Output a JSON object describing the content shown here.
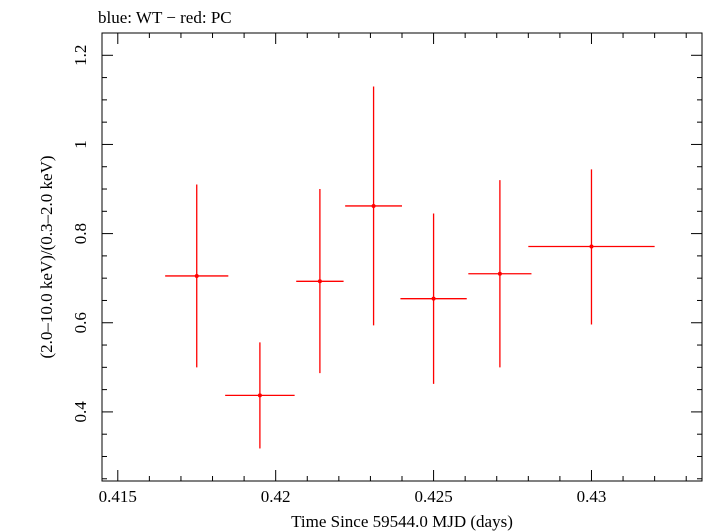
{
  "chart_data": {
    "type": "scatter",
    "title": "blue: WT − red: PC",
    "xlabel": "Time Since 59544.0 MJD (days)",
    "ylabel": "(2.0–10.0 keV)/(0.3–2.0 keV)",
    "xlim": [
      0.4145,
      0.4335
    ],
    "ylim": [
      0.245,
      1.25
    ],
    "x_ticks": [
      0.415,
      0.42,
      0.425,
      0.43
    ],
    "x_tick_labels": [
      "0.415",
      "0.42",
      "0.425",
      "0.43"
    ],
    "y_ticks": [
      0.4,
      0.6,
      0.8,
      1.0,
      1.2
    ],
    "y_tick_labels": [
      "0.4",
      "0.6",
      "0.8",
      "1",
      "1.2"
    ],
    "series": [
      {
        "name": "PC",
        "color": "#ff0000",
        "points": [
          {
            "x": 0.4175,
            "xerr": 0.001,
            "y": 0.705,
            "ylo": 0.5,
            "yhi": 0.91
          },
          {
            "x": 0.4195,
            "xerr": 0.0011,
            "y": 0.437,
            "ylo": 0.318,
            "yhi": 0.556
          },
          {
            "x": 0.4214,
            "xerr": 0.00075,
            "y": 0.693,
            "ylo": 0.487,
            "yhi": 0.9
          },
          {
            "x": 0.4231,
            "xerr": 0.0009,
            "y": 0.862,
            "ylo": 0.594,
            "yhi": 1.13
          },
          {
            "x": 0.425,
            "xerr": 0.00105,
            "y": 0.654,
            "ylo": 0.463,
            "yhi": 0.845
          },
          {
            "x": 0.4271,
            "xerr": 0.001,
            "y": 0.71,
            "ylo": 0.5,
            "yhi": 0.92
          },
          {
            "x": 0.43,
            "xerr": 0.002,
            "y": 0.771,
            "ylo": 0.596,
            "yhi": 0.944
          }
        ]
      }
    ]
  }
}
